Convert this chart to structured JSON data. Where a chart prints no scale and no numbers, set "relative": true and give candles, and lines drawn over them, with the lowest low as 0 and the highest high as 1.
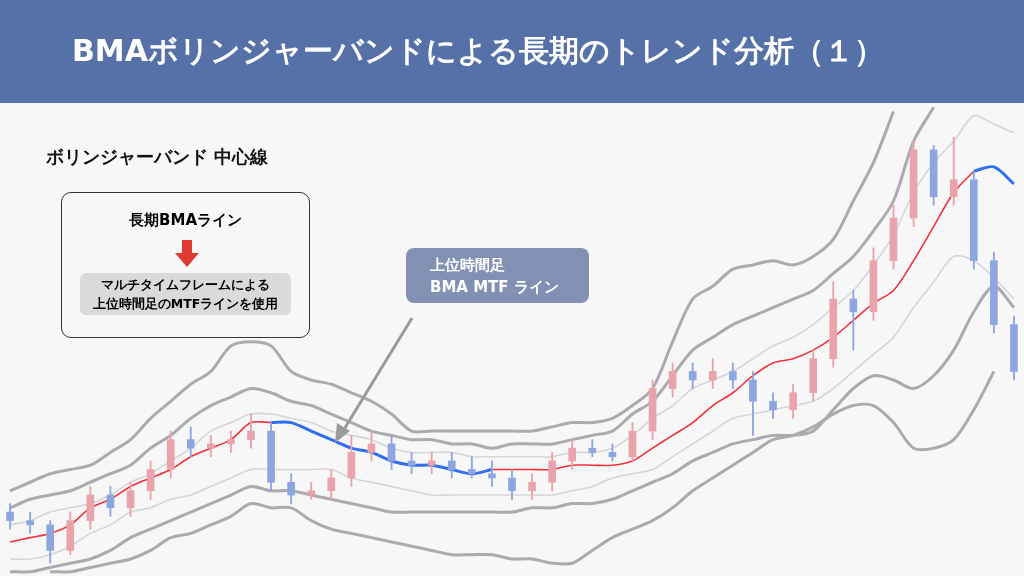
{
  "chart_data": {
    "type": "candlestick",
    "title": "BMAボリンジャーバンドによる長期のトレンド分析（１）",
    "relative": true,
    "legend": false,
    "annotations": [
      "ボリンジャーバンド 中心線",
      "長期BMAライン",
      "マルチタイムフレームによる",
      "上位時間足のMTFラインを使用",
      "上位時間足\nBMA MTF  ライン"
    ],
    "categories": [
      null,
      null,
      null,
      null,
      null,
      null,
      null,
      null,
      null,
      null,
      null,
      null,
      null,
      null,
      null,
      null,
      null,
      null,
      null,
      null,
      null,
      null,
      null,
      null,
      null,
      null,
      null,
      null,
      null,
      null,
      null,
      null,
      null,
      null,
      null,
      null,
      null,
      null,
      null,
      null,
      null,
      null,
      null,
      null,
      null,
      null,
      null,
      null,
      null,
      null,
      null
    ],
    "ohlc": [
      [
        0.12,
        0.14,
        0.08,
        0.1
      ],
      [
        0.1,
        0.12,
        0.07,
        0.09
      ],
      [
        0.09,
        0.1,
        0,
        0.03
      ],
      [
        0.03,
        0.12,
        0.02,
        0.1
      ],
      [
        0.1,
        0.18,
        0.08,
        0.16
      ],
      [
        0.16,
        0.18,
        0.11,
        0.13
      ],
      [
        0.13,
        0.19,
        0.11,
        0.17
      ],
      [
        0.17,
        0.24,
        0.15,
        0.22
      ],
      [
        0.22,
        0.31,
        0.2,
        0.29
      ],
      [
        0.29,
        0.32,
        0.25,
        0.27
      ],
      [
        0.27,
        0.3,
        0.25,
        0.28
      ],
      [
        0.28,
        0.31,
        0.26,
        0.29
      ],
      [
        0.29,
        0.35,
        0.27,
        0.31
      ],
      [
        0.31,
        0.33,
        0.17,
        0.19
      ],
      [
        0.19,
        0.21,
        0.14,
        0.16
      ],
      [
        0.16,
        0.19,
        0.15,
        0.17
      ],
      [
        0.17,
        0.22,
        0.15,
        0.2
      ],
      [
        0.2,
        0.3,
        0.18,
        0.26
      ],
      [
        0.26,
        0.31,
        0.24,
        0.28
      ],
      [
        0.28,
        0.3,
        0.22,
        0.24
      ],
      [
        0.24,
        0.26,
        0.21,
        0.23
      ],
      [
        0.23,
        0.26,
        0.21,
        0.24
      ],
      [
        0.24,
        0.26,
        0.2,
        0.22
      ],
      [
        0.22,
        0.25,
        0.2,
        0.21
      ],
      [
        0.21,
        0.24,
        0.18,
        0.2
      ],
      [
        0.2,
        0.22,
        0.15,
        0.17
      ],
      [
        0.17,
        0.21,
        0.15,
        0.19
      ],
      [
        0.19,
        0.26,
        0.17,
        0.24
      ],
      [
        0.24,
        0.29,
        0.22,
        0.27
      ],
      [
        0.27,
        0.29,
        0.25,
        0.26
      ],
      [
        0.26,
        0.28,
        0.24,
        0.25
      ],
      [
        0.25,
        0.33,
        0.24,
        0.31
      ],
      [
        0.31,
        0.43,
        0.29,
        0.41
      ],
      [
        0.41,
        0.47,
        0.39,
        0.45
      ],
      [
        0.45,
        0.47,
        0.41,
        0.43
      ],
      [
        0.43,
        0.48,
        0.41,
        0.45
      ],
      [
        0.45,
        0.47,
        0.41,
        0.43
      ],
      [
        0.43,
        0.45,
        0.3,
        0.38
      ],
      [
        0.38,
        0.4,
        0.34,
        0.36
      ],
      [
        0.36,
        0.42,
        0.34,
        0.4
      ],
      [
        0.4,
        0.5,
        0.38,
        0.48
      ],
      [
        0.48,
        0.66,
        0.46,
        0.62
      ],
      [
        0.62,
        0.64,
        0.5,
        0.59
      ],
      [
        0.59,
        0.74,
        0.57,
        0.71
      ],
      [
        0.71,
        0.84,
        0.69,
        0.81
      ],
      [
        0.81,
        0.99,
        0.79,
        0.97
      ],
      [
        0.97,
        0.98,
        0.84,
        0.86
      ],
      [
        0.86,
        1,
        0.84,
        0.9
      ],
      [
        0.9,
        0.92,
        0.69,
        0.71
      ],
      [
        0.71,
        0.73,
        0.54,
        0.56
      ],
      [
        0.56,
        0.58,
        0.43,
        0.45
      ]
    ],
    "colors": [
      "#8ea6e0",
      "#8ea6e0",
      "#8ea6e0",
      "#e9a3aa",
      "#e9a3aa",
      "#8ea6e0",
      "#e9a3aa",
      "#e9a3aa",
      "#e9a3aa",
      "#8ea6e0",
      "#e9a3aa",
      "#e9a3aa",
      "#e9a3aa",
      "#8ea6e0",
      "#8ea6e0",
      "#e9a3aa",
      "#e9a3aa",
      "#e9a3aa",
      "#e9a3aa",
      "#8ea6e0",
      "#8ea6e0",
      "#e9a3aa",
      "#8ea6e0",
      "#8ea6e0",
      "#8ea6e0",
      "#8ea6e0",
      "#e9a3aa",
      "#e9a3aa",
      "#e9a3aa",
      "#8ea6e0",
      "#8ea6e0",
      "#e9a3aa",
      "#e9a3aa",
      "#e9a3aa",
      "#8ea6e0",
      "#e9a3aa",
      "#8ea6e0",
      "#8ea6e0",
      "#8ea6e0",
      "#e9a3aa",
      "#e9a3aa",
      "#e9a3aa",
      "#8ea6e0",
      "#e9a3aa",
      "#e9a3aa",
      "#e9a3aa",
      "#8ea6e0",
      "#e9a3aa",
      "#8ea6e0",
      "#8ea6e0",
      "#8ea6e0"
    ],
    "series": [
      {
        "type": "line",
        "color": "#ababaf",
        "values": [
          0.17,
          0.19,
          0.21,
          0.22,
          0.23,
          0.26,
          0.29,
          0.34,
          0.38,
          0.42,
          0.45,
          0.51,
          0.52,
          0.51,
          0.45,
          0.43,
          0.42,
          0.4,
          0.38,
          0.35,
          0.31,
          0.31,
          0.31,
          0.31,
          0.31,
          0.31,
          0.31,
          0.32,
          0.33,
          0.33,
          0.34,
          0.37,
          0.41,
          0.52,
          0.62,
          0.65,
          0.69,
          0.7,
          0.71,
          0.7,
          0.72,
          0.76,
          0.85,
          0.94,
          1.06,
          null,
          null,
          null,
          null,
          null,
          null
        ]
      },
      {
        "type": "line",
        "color": "#ababaf",
        "values": [
          0.13,
          0.15,
          0.16,
          0.17,
          0.19,
          0.21,
          0.23,
          0.27,
          0.3,
          0.34,
          0.37,
          0.39,
          0.41,
          0.4,
          0.38,
          0.37,
          0.35,
          0.33,
          0.31,
          0.3,
          0.29,
          0.29,
          0.28,
          0.28,
          0.27,
          0.28,
          0.28,
          0.28,
          0.29,
          0.3,
          0.31,
          0.35,
          0.38,
          0.44,
          0.5,
          0.53,
          0.56,
          0.58,
          0.6,
          0.62,
          0.64,
          0.68,
          0.72,
          0.78,
          0.85,
          0.99,
          1.07,
          null,
          null,
          null,
          null
        ]
      },
      {
        "type": "line",
        "color": "#d6d6d8",
        "values": [
          0.09,
          0.1,
          0.12,
          0.13,
          0.14,
          0.16,
          0.19,
          0.21,
          0.24,
          0.27,
          0.31,
          0.33,
          0.35,
          0.35,
          0.34,
          0.33,
          0.31,
          0.3,
          0.29,
          0.27,
          0.26,
          0.26,
          0.26,
          0.25,
          0.25,
          0.25,
          0.25,
          0.25,
          0.26,
          0.26,
          0.27,
          0.3,
          0.34,
          0.37,
          0.41,
          0.43,
          0.45,
          0.48,
          0.51,
          0.53,
          0.56,
          0.6,
          0.64,
          0.7,
          0.77,
          0.87,
          0.94,
          0.99,
          1.05,
          1.03,
          1.01
        ]
      },
      {
        "type": "line",
        "color": "#d6d6d8",
        "values": [
          0.01,
          0.01,
          0.02,
          0.04,
          0.07,
          0.09,
          0.12,
          0.13,
          0.15,
          0.16,
          0.18,
          0.2,
          0.22,
          0.22,
          0.22,
          0.22,
          0.22,
          0.2,
          0.19,
          0.18,
          0.17,
          0.16,
          0.16,
          0.16,
          0.16,
          0.16,
          0.16,
          0.16,
          0.17,
          0.18,
          0.2,
          0.21,
          0.22,
          0.25,
          0.28,
          0.31,
          0.34,
          0.35,
          0.36,
          0.37,
          0.38,
          0.41,
          0.45,
          0.49,
          0.53,
          0.6,
          0.66,
          0.72,
          0.71,
          0.67,
          0.62
        ]
      },
      {
        "type": "line",
        "color": "#ababaf",
        "values": [
          -0.02,
          -0.02,
          -0.01,
          0,
          0.01,
          0.03,
          0.06,
          0.08,
          0.1,
          0.12,
          0.14,
          0.16,
          0.18,
          0.17,
          0.17,
          0.16,
          0.15,
          0.14,
          0.13,
          0.12,
          0.12,
          0.12,
          0.12,
          0.12,
          0.12,
          0.12,
          0.13,
          0.13,
          0.14,
          0.14,
          0.15,
          0.17,
          0.19,
          0.21,
          0.24,
          0.26,
          0.28,
          0.29,
          0.3,
          0.3,
          0.31,
          0.36,
          0.41,
          0.44,
          0.43,
          0.41,
          0.44,
          0.5,
          0.59,
          0.65,
          0.6
        ]
      },
      {
        "type": "line",
        "color": "#ababaf",
        "values": [
          null,
          null,
          -0.02,
          -0.02,
          -0.01,
          0,
          0.01,
          0.03,
          0.06,
          0.07,
          0.09,
          0.11,
          0.14,
          0.13,
          0.13,
          0.1,
          0.08,
          0.07,
          0.06,
          0.05,
          0.04,
          0.03,
          0.02,
          0.02,
          0.02,
          0.01,
          0.01,
          0,
          0,
          0.03,
          0.06,
          0.08,
          0.1,
          0.13,
          0.17,
          0.2,
          0.23,
          0.26,
          0.29,
          0.3,
          0.32,
          0.35,
          0.37,
          0.37,
          0.33,
          0.27,
          0.27,
          0.29,
          0.36,
          0.45,
          null
        ]
      },
      {
        "type": "line",
        "color": "#f0303c",
        "values": [
          0.05,
          0.06,
          0.07,
          0.09,
          0.13,
          0.15,
          0.18,
          0.2,
          0.22,
          0.25,
          0.27,
          0.29,
          0.33,
          0.33,
          null,
          null,
          null,
          null,
          null,
          null,
          null,
          null,
          null,
          null,
          0.22,
          0.22,
          0.22,
          0.22,
          0.23,
          0.23,
          0.23,
          0.24,
          0.27,
          0.3,
          0.33,
          0.37,
          0.4,
          0.44,
          0.47,
          0.48,
          0.5,
          0.53,
          0.57,
          0.61,
          0.64,
          0.71,
          0.79,
          0.87,
          0.92,
          null,
          null
        ]
      },
      {
        "type": "line",
        "color": "#2f6ef0",
        "values": [
          null,
          null,
          null,
          null,
          null,
          null,
          null,
          null,
          null,
          null,
          null,
          null,
          null,
          0.33,
          0.33,
          0.31,
          0.29,
          0.27,
          0.26,
          0.24,
          0.23,
          0.23,
          0.22,
          0.21,
          0.22,
          null,
          null,
          null,
          null,
          null,
          null,
          null,
          null,
          null,
          null,
          null,
          null,
          null,
          null,
          null,
          null,
          null,
          null,
          null,
          null,
          null,
          null,
          null,
          0.92,
          0.93,
          0.89
        ]
      }
    ]
  }
}
